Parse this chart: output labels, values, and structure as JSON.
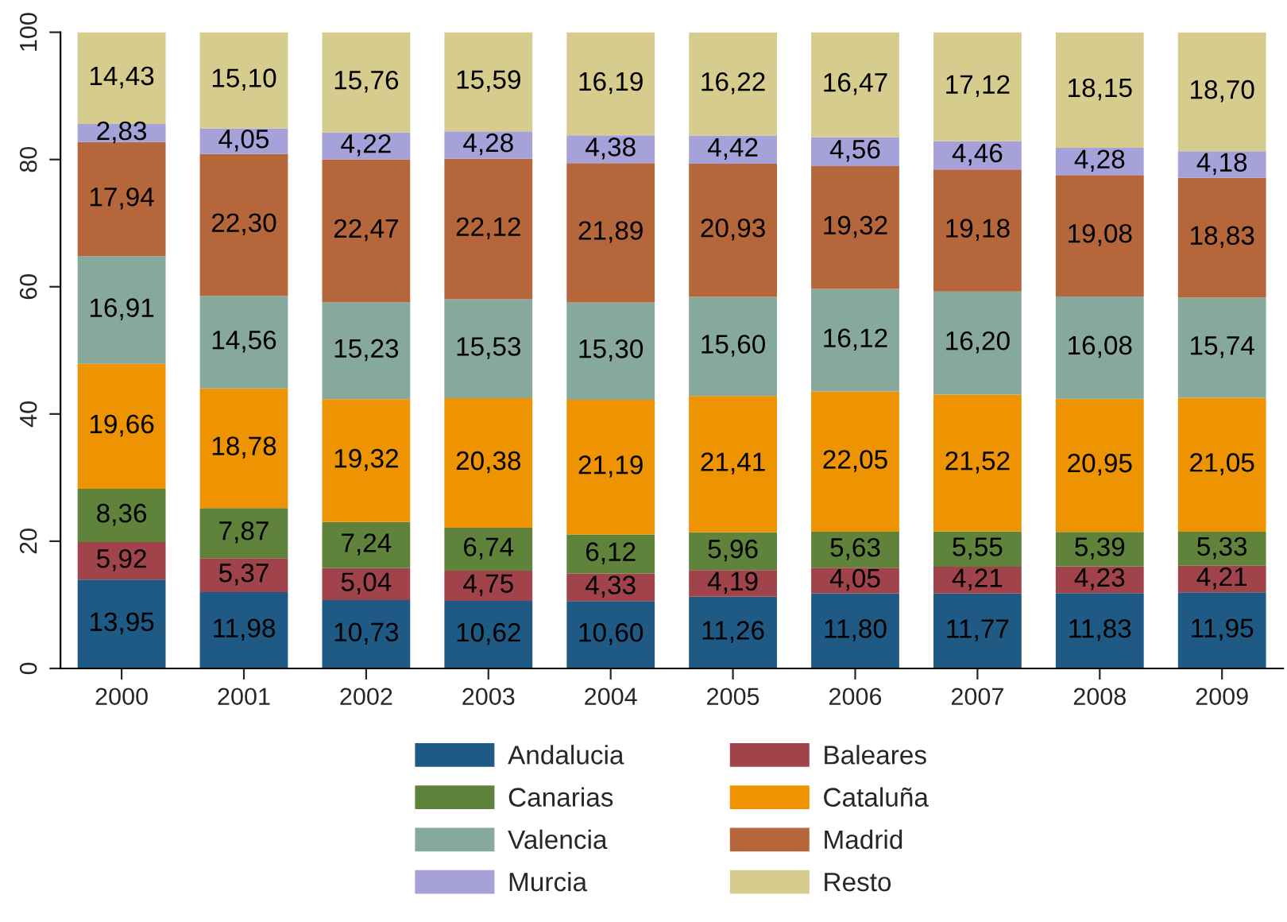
{
  "chart_data": {
    "type": "bar",
    "stacked": true,
    "categories": [
      "2000",
      "2001",
      "2002",
      "2003",
      "2004",
      "2005",
      "2006",
      "2007",
      "2008",
      "2009"
    ],
    "ylim": [
      0,
      100
    ],
    "yticks": [
      0,
      20,
      40,
      60,
      80,
      100
    ],
    "grid": false,
    "legend": "bottom",
    "series": [
      {
        "name": "Andalucia",
        "color": "#1f5a85",
        "values": [
          13.95,
          11.98,
          10.73,
          10.62,
          10.6,
          11.26,
          11.8,
          11.77,
          11.83,
          11.95
        ],
        "value_labels": [
          "13,95",
          "11,98",
          "10,73",
          "10,62",
          "10,60",
          "11,26",
          "11,80",
          "11,77",
          "11,83",
          "11,95"
        ]
      },
      {
        "name": "Baleares",
        "color": "#a0434a",
        "values": [
          5.92,
          5.37,
          5.04,
          4.75,
          4.33,
          4.19,
          4.05,
          4.21,
          4.23,
          4.21
        ],
        "value_labels": [
          "5,92",
          "5,37",
          "5,04",
          "4,75",
          "4,33",
          "4,19",
          "4,05",
          "4,21",
          "4,23",
          "4,21"
        ]
      },
      {
        "name": "Canarias",
        "color": "#5f833b",
        "values": [
          8.36,
          7.87,
          7.24,
          6.74,
          6.12,
          5.96,
          5.63,
          5.55,
          5.39,
          5.33
        ],
        "value_labels": [
          "8,36",
          "7,87",
          "7,24",
          "6,74",
          "6,12",
          "5,96",
          "5,63",
          "5,55",
          "5,39",
          "5,33"
        ]
      },
      {
        "name": "Cataluña",
        "color": "#ee9302",
        "values": [
          19.66,
          18.78,
          19.32,
          20.38,
          21.19,
          21.41,
          22.05,
          21.52,
          20.95,
          21.05
        ],
        "value_labels": [
          "19,66",
          "18,78",
          "19,32",
          "20,38",
          "21,19",
          "21,41",
          "22,05",
          "21,52",
          "20,95",
          "21,05"
        ]
      },
      {
        "name": "Valencia",
        "color": "#86a99b",
        "values": [
          16.91,
          14.56,
          15.23,
          15.53,
          15.3,
          15.6,
          16.12,
          16.2,
          16.08,
          15.74
        ],
        "value_labels": [
          "16,91",
          "14,56",
          "15,23",
          "15,53",
          "15,30",
          "15,60",
          "16,12",
          "16,20",
          "16,08",
          "15,74"
        ]
      },
      {
        "name": "Madrid",
        "color": "#b5663a",
        "values": [
          17.94,
          22.3,
          22.47,
          22.12,
          21.89,
          20.93,
          19.32,
          19.18,
          19.08,
          18.83
        ],
        "value_labels": [
          "17,94",
          "22,30",
          "22,47",
          "22,12",
          "21,89",
          "20,93",
          "19,32",
          "19,18",
          "19,08",
          "18,83"
        ]
      },
      {
        "name": "Murcia",
        "color": "#a7a1da",
        "values": [
          2.83,
          4.05,
          4.22,
          4.28,
          4.38,
          4.42,
          4.56,
          4.46,
          4.28,
          4.18
        ],
        "value_labels": [
          "2,83",
          "4,05",
          "4,22",
          "4,28",
          "4,38",
          "4,42",
          "4,56",
          "4,46",
          "4,28",
          "4,18"
        ]
      },
      {
        "name": "Resto",
        "color": "#d6cc8e",
        "values": [
          14.43,
          15.1,
          15.76,
          15.59,
          16.19,
          16.22,
          16.47,
          17.12,
          18.15,
          18.7
        ],
        "value_labels": [
          "14,43",
          "15,10",
          "15,76",
          "15,59",
          "16,19",
          "16,22",
          "16,47",
          "17,12",
          "18,15",
          "18,70"
        ]
      }
    ]
  }
}
